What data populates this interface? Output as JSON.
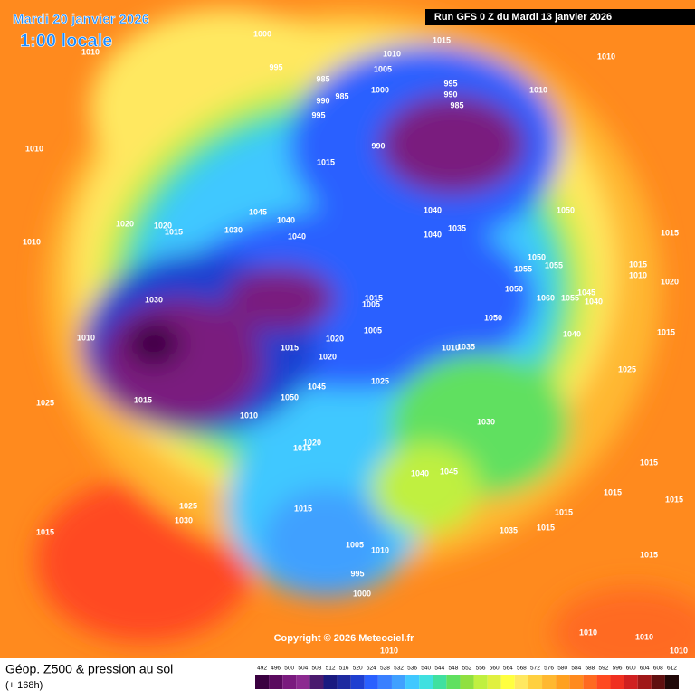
{
  "header": {
    "date": "Mardi 20 janvier 2026",
    "time": "1:00 locale",
    "run": "Run GFS 0 Z du Mardi 13 janvier 2026"
  },
  "copyright": "Copyright © 2026 Meteociel.fr",
  "footer": {
    "title": "Géop. Z500 & pression au sol",
    "subtitle": "(+ 168h)"
  },
  "legend": {
    "labels": [
      "492",
      "496",
      "500",
      "504",
      "508",
      "512",
      "516",
      "520",
      "524",
      "528",
      "532",
      "536",
      "540",
      "544",
      "548",
      "552",
      "556",
      "560",
      "564",
      "568",
      "572",
      "576",
      "580",
      "584",
      "588",
      "592",
      "596",
      "600",
      "604",
      "608",
      "612"
    ],
    "colors": [
      "#3a0040",
      "#5a0a5e",
      "#7a1a7e",
      "#8c2a90",
      "#4a1a6e",
      "#1a1a80",
      "#1e2aa0",
      "#1f3fd0",
      "#2a60ff",
      "#3a80ff",
      "#40a0ff",
      "#40c8ff",
      "#40e0e0",
      "#40e0a0",
      "#60e060",
      "#90e040",
      "#c0f040",
      "#e0f040",
      "#ffff40",
      "#ffe860",
      "#ffd040",
      "#ffb830",
      "#ffa020",
      "#ff8a1e",
      "#ff6a20",
      "#ff4a20",
      "#f03020",
      "#d02020",
      "#a01818",
      "#601010",
      "#200808"
    ]
  },
  "isobars": [
    "1000",
    "1010",
    "995",
    "985",
    "990",
    "985",
    "995",
    "1005",
    "1010",
    "1015",
    "1000",
    "995",
    "990",
    "985",
    "1010",
    "1010",
    "1010",
    "990",
    "1015",
    "1045",
    "1040",
    "1040",
    "1030",
    "1020",
    "1020",
    "1015",
    "1010",
    "1040",
    "1040",
    "1035",
    "1050",
    "1015",
    "1050",
    "1055",
    "1055",
    "1015",
    "1010",
    "1020",
    "1050",
    "1060",
    "1055",
    "1045",
    "1040",
    "1030",
    "1015",
    "1005",
    "1050",
    "1020",
    "1005",
    "1015",
    "1020",
    "1010",
    "1035",
    "1040",
    "1015",
    "1010",
    "1025",
    "1025",
    "1045",
    "1050",
    "1015",
    "1025",
    "1010",
    "1030",
    "1020",
    "1015",
    "1040",
    "1045",
    "1015",
    "1015",
    "1015",
    "1015",
    "1015",
    "1025",
    "1030",
    "1035",
    "1015",
    "1015",
    "1005",
    "1010",
    "995",
    "1000",
    "1015",
    "1010",
    "1010",
    "1010",
    "1010"
  ]
}
